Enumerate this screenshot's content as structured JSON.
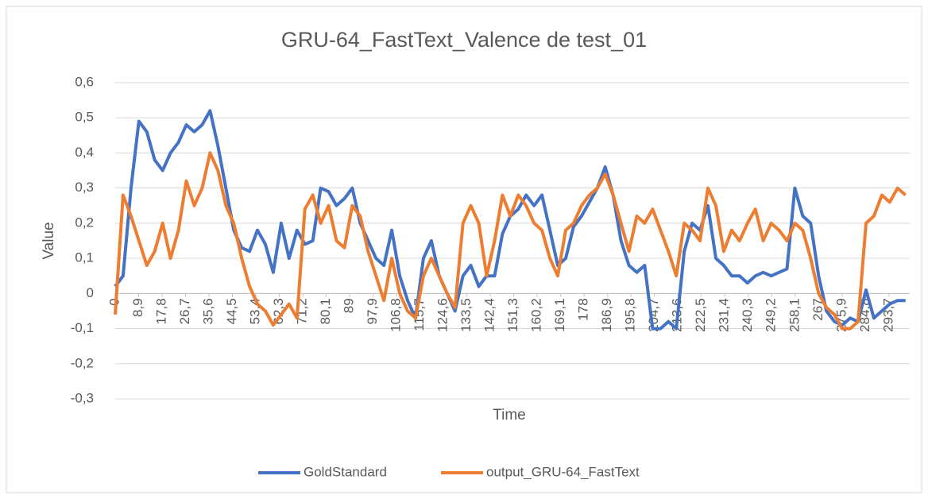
{
  "chart_data": {
    "type": "line",
    "title": "GRU-64_FastText_Valence de test_01",
    "x_label": "Time",
    "y_label": "Value",
    "x": [
      0,
      3,
      6,
      9,
      12,
      15,
      18,
      21,
      24,
      27,
      30,
      33,
      36,
      39,
      42,
      45,
      48,
      51,
      54,
      57,
      60,
      63,
      66,
      69,
      72,
      75,
      78,
      81,
      84,
      87,
      90,
      93,
      96,
      99,
      102,
      105,
      108,
      111,
      114,
      117,
      120,
      123,
      126,
      129,
      132,
      135,
      138,
      141,
      144,
      147,
      150,
      153,
      156,
      159,
      162,
      165,
      168,
      171,
      174,
      177,
      180,
      183,
      186,
      189,
      192,
      195,
      198,
      201,
      204,
      207,
      210,
      213,
      216,
      219,
      222,
      225,
      228,
      231,
      234,
      237,
      240,
      243,
      246,
      249,
      252,
      255,
      258,
      261,
      264,
      267,
      270,
      273,
      276,
      279,
      282,
      285,
      288,
      291,
      294,
      297,
      300
    ],
    "series": [
      {
        "name": "GoldStandard",
        "color": "#4472c4",
        "values": [
          0.02,
          0.05,
          0.3,
          0.49,
          0.46,
          0.38,
          0.35,
          0.4,
          0.43,
          0.48,
          0.46,
          0.48,
          0.52,
          0.42,
          0.3,
          0.18,
          0.13,
          0.12,
          0.18,
          0.14,
          0.06,
          0.2,
          0.1,
          0.18,
          0.14,
          0.15,
          0.3,
          0.29,
          0.25,
          0.27,
          0.3,
          0.2,
          0.15,
          0.1,
          0.08,
          0.18,
          0.05,
          -0.02,
          -0.07,
          0.1,
          0.15,
          0.05,
          0.0,
          -0.05,
          0.05,
          0.08,
          0.02,
          0.05,
          0.05,
          0.17,
          0.22,
          0.24,
          0.28,
          0.25,
          0.28,
          0.18,
          0.08,
          0.1,
          0.19,
          0.22,
          0.26,
          0.3,
          0.36,
          0.28,
          0.15,
          0.08,
          0.06,
          0.08,
          -0.1,
          -0.1,
          -0.08,
          -0.1,
          0.12,
          0.2,
          0.18,
          0.25,
          0.1,
          0.08,
          0.05,
          0.05,
          0.03,
          0.05,
          0.06,
          0.05,
          0.06,
          0.07,
          0.3,
          0.22,
          0.2,
          0.05,
          -0.05,
          -0.08,
          -0.09,
          -0.07,
          -0.08,
          0.01,
          -0.07,
          -0.05,
          -0.03,
          -0.02,
          -0.02
        ]
      },
      {
        "name": "output_GRU-64_FastText",
        "color": "#ed7d31",
        "values": [
          -0.06,
          0.28,
          0.22,
          0.15,
          0.08,
          0.12,
          0.2,
          0.1,
          0.18,
          0.32,
          0.25,
          0.3,
          0.4,
          0.35,
          0.25,
          0.2,
          0.1,
          0.02,
          -0.03,
          -0.05,
          -0.09,
          -0.06,
          -0.03,
          -0.07,
          0.24,
          0.28,
          0.2,
          0.25,
          0.15,
          0.13,
          0.25,
          0.22,
          0.12,
          0.05,
          -0.02,
          0.1,
          0.0,
          -0.05,
          -0.07,
          0.05,
          0.1,
          0.05,
          0.0,
          -0.04,
          0.2,
          0.25,
          0.2,
          0.05,
          0.15,
          0.28,
          0.22,
          0.28,
          0.25,
          0.2,
          0.18,
          0.1,
          0.05,
          0.18,
          0.2,
          0.25,
          0.28,
          0.3,
          0.34,
          0.28,
          0.2,
          0.12,
          0.22,
          0.2,
          0.24,
          0.18,
          0.12,
          0.05,
          0.2,
          0.18,
          0.15,
          0.3,
          0.25,
          0.12,
          0.18,
          0.15,
          0.2,
          0.24,
          0.15,
          0.2,
          0.18,
          0.15,
          0.2,
          0.18,
          0.1,
          0.0,
          -0.04,
          -0.06,
          -0.1,
          -0.1,
          -0.08,
          0.2,
          0.22,
          0.28,
          0.26,
          0.3,
          0.28
        ]
      }
    ],
    "xlim": [
      0,
      301.6
    ],
    "xticks": [
      0,
      {
        "value": 8.9,
        "label": "8,9"
      },
      {
        "value": 17.8,
        "label": "17,8"
      },
      {
        "value": 26.7,
        "label": "26,7"
      },
      {
        "value": 35.6,
        "label": "35,6"
      },
      {
        "value": 44.5,
        "label": "44,5"
      },
      {
        "value": 53.4,
        "label": "53,4"
      },
      {
        "value": 62.3,
        "label": "62,3"
      },
      {
        "value": 71.2,
        "label": "71,2"
      },
      {
        "value": 80.1,
        "label": "80,1"
      },
      89,
      {
        "value": 97.9,
        "label": "97,9"
      },
      {
        "value": 106.8,
        "label": "106,8"
      },
      {
        "value": 115.7,
        "label": "115,7"
      },
      {
        "value": 124.6,
        "label": "124,6"
      },
      {
        "value": 133.5,
        "label": "133,5"
      },
      {
        "value": 142.4,
        "label": "142,4"
      },
      {
        "value": 151.3,
        "label": "151,3"
      },
      {
        "value": 160.2,
        "label": "160,2"
      },
      {
        "value": 169.1,
        "label": "169,1"
      },
      178,
      {
        "value": 186.9,
        "label": "186,9"
      },
      {
        "value": 195.8,
        "label": "195,8"
      },
      {
        "value": 204.7,
        "label": "204,7"
      },
      {
        "value": 213.6,
        "label": "213,6"
      },
      {
        "value": 222.5,
        "label": "222,5"
      },
      {
        "value": 231.4,
        "label": "231,4"
      },
      {
        "value": 240.3,
        "label": "240,3"
      },
      {
        "value": 249.2,
        "label": "249,2"
      },
      {
        "value": 258.1,
        "label": "258,1"
      },
      267,
      {
        "value": 275.9,
        "label": "275,9"
      },
      {
        "value": 284.8,
        "label": "284,8"
      },
      {
        "value": 293.7,
        "label": "293,7"
      }
    ],
    "ylim": [
      -0.3,
      0.6
    ],
    "yticks": [
      {
        "value": -0.3,
        "label": "-0,3"
      },
      {
        "value": -0.2,
        "label": "-0,2"
      },
      {
        "value": -0.1,
        "label": "-0,1"
      },
      0,
      {
        "value": 0.1,
        "label": "0,1"
      },
      {
        "value": 0.2,
        "label": "0,2"
      },
      {
        "value": 0.3,
        "label": "0,3"
      },
      {
        "value": 0.4,
        "label": "0,4"
      },
      {
        "value": 0.5,
        "label": "0,5"
      },
      {
        "value": 0.6,
        "label": "0,6"
      }
    ],
    "grid": true,
    "legend": "bottom"
  }
}
